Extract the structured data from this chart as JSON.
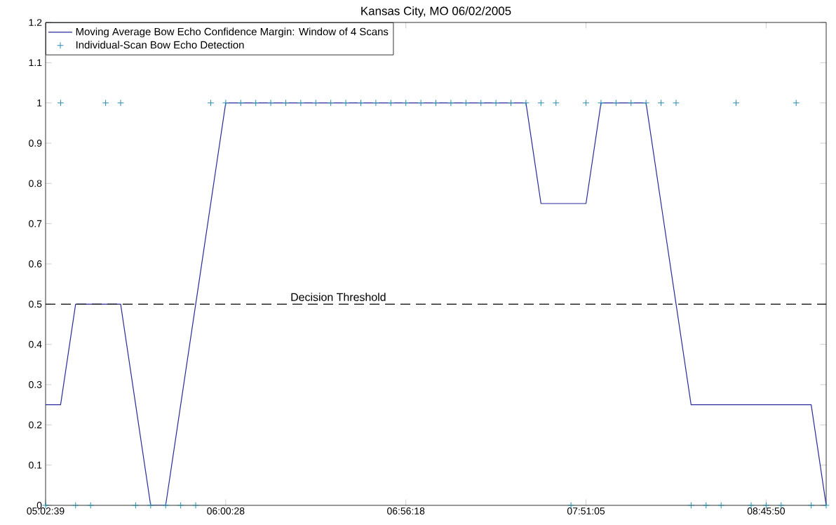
{
  "chart_data": {
    "type": "line",
    "title": "Kansas City, MO 06/02/2005",
    "categories": [
      "05:02:39",
      null,
      null,
      null,
      null,
      null,
      null,
      null,
      null,
      null,
      null,
      null,
      "06:00:28",
      null,
      null,
      null,
      null,
      null,
      null,
      null,
      null,
      null,
      null,
      null,
      "06:56:18",
      null,
      null,
      null,
      null,
      null,
      null,
      null,
      null,
      null,
      null,
      null,
      "07:51:05",
      null,
      null,
      null,
      null,
      null,
      null,
      null,
      null,
      null,
      null,
      null,
      "08:45:50",
      null,
      null,
      null,
      null
    ],
    "series": [
      {
        "name": "Moving Average Bow Echo Confidence Margin: Window of 4 Scans",
        "color": "#2a2a9c",
        "marker": "none",
        "line_style": "solid",
        "values": [
          0.25,
          0.25,
          0.5,
          0.5,
          0.5,
          0.5,
          0.25,
          0,
          0,
          0.25,
          0.5,
          0.75,
          1,
          1,
          1,
          1,
          1,
          1,
          1,
          1,
          1,
          1,
          1,
          1,
          1,
          1,
          1,
          1,
          1,
          1,
          1,
          1,
          1,
          0.75,
          0.75,
          0.75,
          0.75,
          1,
          1,
          1,
          1,
          0.75,
          0.5,
          0.25,
          0.25,
          0.25,
          0.25,
          0.25,
          0.25,
          0.25,
          0.25,
          0.25,
          0
        ]
      },
      {
        "name": "Individual-Scan Bow Echo Detection",
        "type": "scatter",
        "color": "#2a8fb0",
        "marker": "cross",
        "values": [
          0,
          1,
          0,
          0,
          1,
          1,
          0,
          0,
          0,
          0,
          0,
          1,
          1,
          1,
          1,
          1,
          1,
          1,
          1,
          1,
          1,
          1,
          1,
          1,
          1,
          1,
          1,
          1,
          1,
          1,
          1,
          1,
          1,
          1,
          1,
          0,
          1,
          1,
          1,
          1,
          1,
          1,
          1,
          0,
          0,
          0,
          1,
          0,
          0,
          0,
          1,
          0,
          0
        ]
      }
    ],
    "ylim": [
      0,
      1.2
    ],
    "yticks": [
      0,
      0.1,
      0.2,
      0.3,
      0.4,
      0.5,
      0.6,
      0.7,
      0.8,
      0.9,
      1,
      1.1,
      1.2
    ],
    "ref_lines": [
      {
        "axis": "y",
        "value": 0.5,
        "label": "Decision Threshold",
        "color": "#000000",
        "line_style": "dashed"
      }
    ],
    "legend": "top left",
    "grid": false
  }
}
